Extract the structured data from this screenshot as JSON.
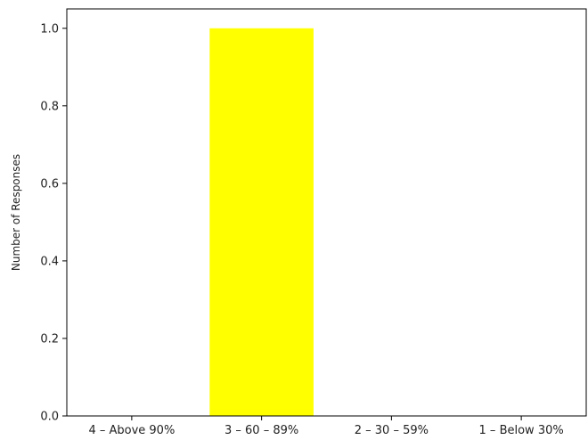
{
  "chart_data": {
    "type": "bar",
    "categories": [
      "4 – Above 90%",
      "3 – 60 – 89%",
      "2 – 30 – 59%",
      "1 – Below 30%"
    ],
    "values": [
      0,
      1,
      0,
      0
    ],
    "title": "",
    "xlabel": "",
    "ylabel": "Number of Responses",
    "ylim": [
      0,
      1.05
    ],
    "yticks": [
      "0.0",
      "0.2",
      "0.4",
      "0.6",
      "0.8",
      "1.0"
    ],
    "bar_color": "#ffff00",
    "grid": false
  }
}
